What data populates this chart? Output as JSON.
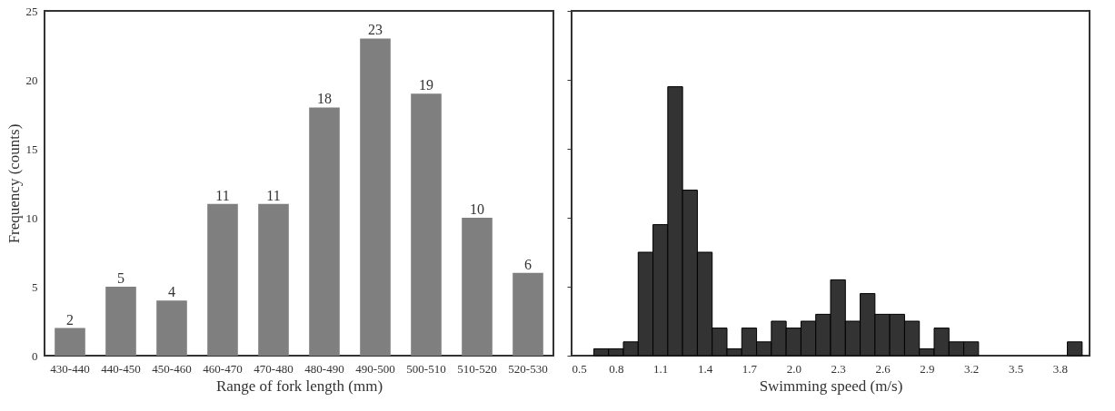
{
  "chart_data": [
    {
      "type": "bar",
      "xlabel": "Range of fork length (mm)",
      "ylabel": "Frequency (counts)",
      "categories": [
        "430-440",
        "440-450",
        "450-460",
        "460-470",
        "470-480",
        "480-490",
        "490-500",
        "500-510",
        "510-520",
        "520-530"
      ],
      "values": [
        2,
        5,
        4,
        11,
        11,
        18,
        23,
        19,
        10,
        6
      ],
      "color": "#7f7f7f",
      "data_labels": true,
      "ylim": [
        0,
        25
      ],
      "yticks": [
        0,
        5,
        10,
        15,
        20,
        25
      ],
      "grid": false
    },
    {
      "type": "histogram",
      "xlabel": "Swimming speed (m/s)",
      "ylim": [
        0,
        25
      ],
      "yticks": [
        0,
        5,
        10,
        15,
        20,
        25
      ],
      "tick_labels": "x",
      "color": "#333333",
      "bins": [
        0.65,
        0.75,
        0.85,
        0.95,
        1.05,
        1.15,
        1.25,
        1.35,
        1.45,
        1.55,
        1.65,
        1.75,
        1.85,
        1.95,
        2.05,
        2.15,
        2.25,
        2.35,
        2.45,
        2.55,
        2.65,
        2.75,
        2.85,
        2.95,
        3.05,
        3.15,
        3.25,
        3.35,
        3.45,
        3.55,
        3.65,
        3.75,
        3.85,
        3.95
      ],
      "values": [
        0.5,
        0.5,
        1,
        7.5,
        9.5,
        19.5,
        12,
        7.5,
        2,
        0.5,
        2,
        1,
        2.5,
        2,
        2.5,
        3,
        5.5,
        2.5,
        4.5,
        3,
        3,
        2.5,
        0.5,
        2,
        1,
        1,
        0,
        0,
        0,
        0,
        0,
        0,
        1
      ],
      "xlim": [
        0.5,
        4.0
      ],
      "xticks": [
        {
          "value": 0.5,
          "label": "0.5"
        },
        {
          "value": 0.8,
          "label": "0.8"
        },
        {
          "value": 1.1,
          "label": "1.1"
        },
        {
          "value": 1.4,
          "label": "1.4"
        },
        {
          "value": 1.7,
          "label": "1.7"
        },
        {
          "value": 2.0,
          "label": "2.0"
        },
        {
          "value": 2.3,
          "label": "2.3"
        },
        {
          "value": 2.6,
          "label": "2.6"
        },
        {
          "value": 2.9,
          "label": "2.9"
        },
        {
          "value": 3.2,
          "label": "3.2"
        },
        {
          "value": 3.5,
          "label": "3.5"
        },
        {
          "value": 3.8,
          "label": "3.8"
        }
      ],
      "grid": false
    }
  ]
}
